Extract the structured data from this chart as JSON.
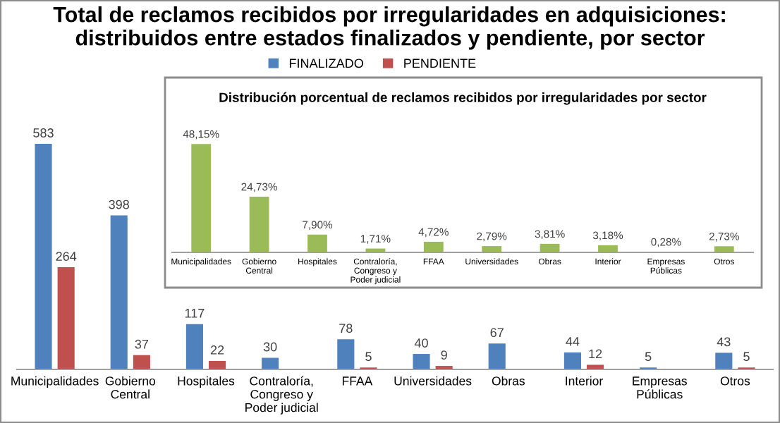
{
  "chart_data": [
    {
      "type": "bar",
      "title": "Total de reclamos recibidos por irregularidades en adquisiciones:\ndistribuidos entre estados finalizados y pendiente, por sector",
      "categories": [
        "Municipalidades",
        "Gobierno\nCentral",
        "Hospitales",
        "Contraloría,\nCongreso y\nPoder judicial",
        "FFAA",
        "Universidades",
        "Obras",
        "Interior",
        "Empresas\nPúblicas",
        "Otros"
      ],
      "series": [
        {
          "name": "FINALIZADO",
          "color": "#4f81bd",
          "values": [
            583,
            398,
            117,
            30,
            78,
            40,
            67,
            44,
            5,
            43
          ]
        },
        {
          "name": "PENDIENTE",
          "color": "#c0504d",
          "values": [
            264,
            37,
            22,
            null,
            5,
            9,
            null,
            12,
            null,
            5
          ]
        }
      ],
      "data_labels": true,
      "legend": "top"
    },
    {
      "type": "bar",
      "title": "Distribución porcentual de reclamos recibidos por irregularidades por sector",
      "categories": [
        "Municipalidades",
        "Gobierno\nCentral",
        "Hospitales",
        "Contraloría,\nCongreso y\nPoder judicial",
        "FFAA",
        "Universidades",
        "Obras",
        "Interior",
        "Empresas\nPúblicas",
        "Otros"
      ],
      "values": [
        48.15,
        24.73,
        7.9,
        1.71,
        4.72,
        2.79,
        3.81,
        3.18,
        0.28,
        2.73
      ],
      "color": "#9bbb59",
      "value_labels": [
        "48,15%",
        "24,73%",
        "7,90%",
        "1,71%",
        "4,72%",
        "2,79%",
        "3,81%",
        "3,18%",
        "0,28%",
        "2,73%"
      ]
    }
  ]
}
